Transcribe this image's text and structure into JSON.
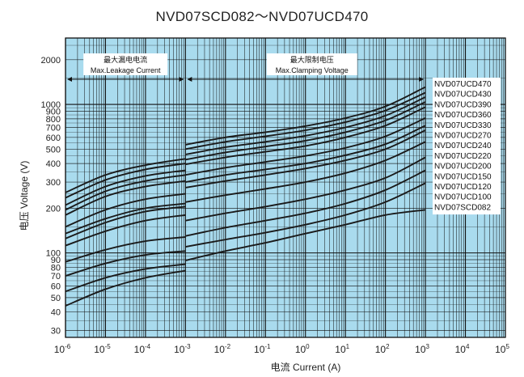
{
  "chart_data": {
    "type": "line",
    "title": "NVD07SCD082～NVD07UCD470",
    "xlabel": "电流 Current (A)",
    "ylabel": "电压 Voltage (V)",
    "x_scale": "log",
    "y_scale": "log",
    "xlim": [
      1e-06,
      100000.0
    ],
    "ylim": [
      27,
      2800
    ],
    "grid": true,
    "background_color": "#a9dbee",
    "line_color": "#1a1a1a",
    "x_ticks": [
      {
        "value": 1e-06,
        "base": "10",
        "exp": "-6"
      },
      {
        "value": 1e-05,
        "base": "10",
        "exp": "-5"
      },
      {
        "value": 0.0001,
        "base": "10",
        "exp": "-4"
      },
      {
        "value": 0.001,
        "base": "10",
        "exp": "-3"
      },
      {
        "value": 0.01,
        "base": "10",
        "exp": "-2"
      },
      {
        "value": 0.1,
        "base": "10",
        "exp": "-1"
      },
      {
        "value": 1,
        "base": "10",
        "exp": "0"
      },
      {
        "value": 10,
        "base": "10",
        "exp": "1"
      },
      {
        "value": 100,
        "base": "10",
        "exp": "2"
      },
      {
        "value": 1000,
        "base": "10",
        "exp": "3"
      },
      {
        "value": 10000,
        "base": "10",
        "exp": "4"
      },
      {
        "value": 100000,
        "base": "10",
        "exp": "5"
      }
    ],
    "y_ticks": [
      30,
      40,
      50,
      60,
      70,
      80,
      90,
      100,
      200,
      300,
      400,
      500,
      600,
      700,
      800,
      900,
      1000,
      2000
    ],
    "regions": [
      {
        "label_cn": "最大漏电电流",
        "label_en": "Max.Leakage Current",
        "x_start": 1e-06,
        "x_end": 0.001
      },
      {
        "label_cn": "最大限制电压",
        "label_en": "Max.Clamping Voltage",
        "x_start": 0.001,
        "x_end": 1000
      }
    ],
    "legend": [
      "NVD07UCD470",
      "NVD07UCD430",
      "NVD07UCD390",
      "NVD07UCD360",
      "NVD07UCD330",
      "NVD07UCD270",
      "NVD07UCD240",
      "NVD07UCD220",
      "NVD07UCD200",
      "NVD07UCD150",
      "NVD07UCD120",
      "NVD07UCD100",
      "NVD07SCD082"
    ],
    "x_points": [
      1e-06,
      1e-05,
      0.0001,
      0.001
    ],
    "x_points_clamp": [
      0.001,
      0.01,
      0.1,
      1,
      10,
      100,
      1000
    ],
    "series": [
      {
        "name": "NVD07UCD470",
        "leakage": [
          255,
          335,
          390,
          430
        ],
        "clamping": [
          535,
          600,
          650,
          715,
          810,
          970,
          1310
        ]
      },
      {
        "name": "NVD07UCD430",
        "leakage": [
          235,
          310,
          365,
          400
        ],
        "clamping": [
          500,
          560,
          610,
          670,
          760,
          910,
          1200
        ]
      },
      {
        "name": "NVD07UCD390",
        "leakage": [
          210,
          280,
          330,
          360
        ],
        "clamping": [
          460,
          515,
          560,
          615,
          700,
          840,
          1120
        ]
      },
      {
        "name": "NVD07UCD360",
        "leakage": [
          195,
          260,
          305,
          335
        ],
        "clamping": [
          425,
          475,
          520,
          570,
          650,
          780,
          1040
        ]
      },
      {
        "name": "NVD07UCD330",
        "leakage": [
          180,
          240,
          280,
          305
        ],
        "clamping": [
          395,
          440,
          480,
          525,
          600,
          720,
          960
        ]
      },
      {
        "name": "NVD07UCD270",
        "leakage": [
          150,
          195,
          230,
          250
        ],
        "clamping": [
          335,
          375,
          410,
          450,
          510,
          610,
          810
        ]
      },
      {
        "name": "NVD07UCD240",
        "leakage": [
          135,
          170,
          200,
          215
        ],
        "clamping": [
          300,
          335,
          365,
          400,
          455,
          540,
          720
        ]
      },
      {
        "name": "NVD07UCD220",
        "leakage": [
          125,
          160,
          190,
          205
        ],
        "clamping": [
          275,
          305,
          335,
          370,
          420,
          500,
          670
        ]
      },
      {
        "name": "NVD07UCD200",
        "leakage": [
          112,
          140,
          165,
          180
        ],
        "clamping": [
          220,
          245,
          270,
          300,
          345,
          420,
          560
        ]
      },
      {
        "name": "NVD07UCD150",
        "leakage": [
          87,
          105,
          120,
          128
        ],
        "clamping": [
          165,
          185,
          205,
          230,
          265,
          320,
          440
        ]
      },
      {
        "name": "NVD07UCD120",
        "leakage": [
          70,
          85,
          97,
          103
        ],
        "clamping": [
          130,
          148,
          165,
          185,
          215,
          265,
          360
        ]
      },
      {
        "name": "NVD07UCD100",
        "leakage": [
          55,
          68,
          78,
          84
        ],
        "clamping": [
          110,
          123,
          137,
          155,
          180,
          220,
          295
        ]
      },
      {
        "name": "NVD07SCD082",
        "leakage": [
          44,
          57,
          68,
          76
        ],
        "clamping": [
          89,
          103,
          117,
          135,
          155,
          180,
          195
        ]
      }
    ]
  }
}
